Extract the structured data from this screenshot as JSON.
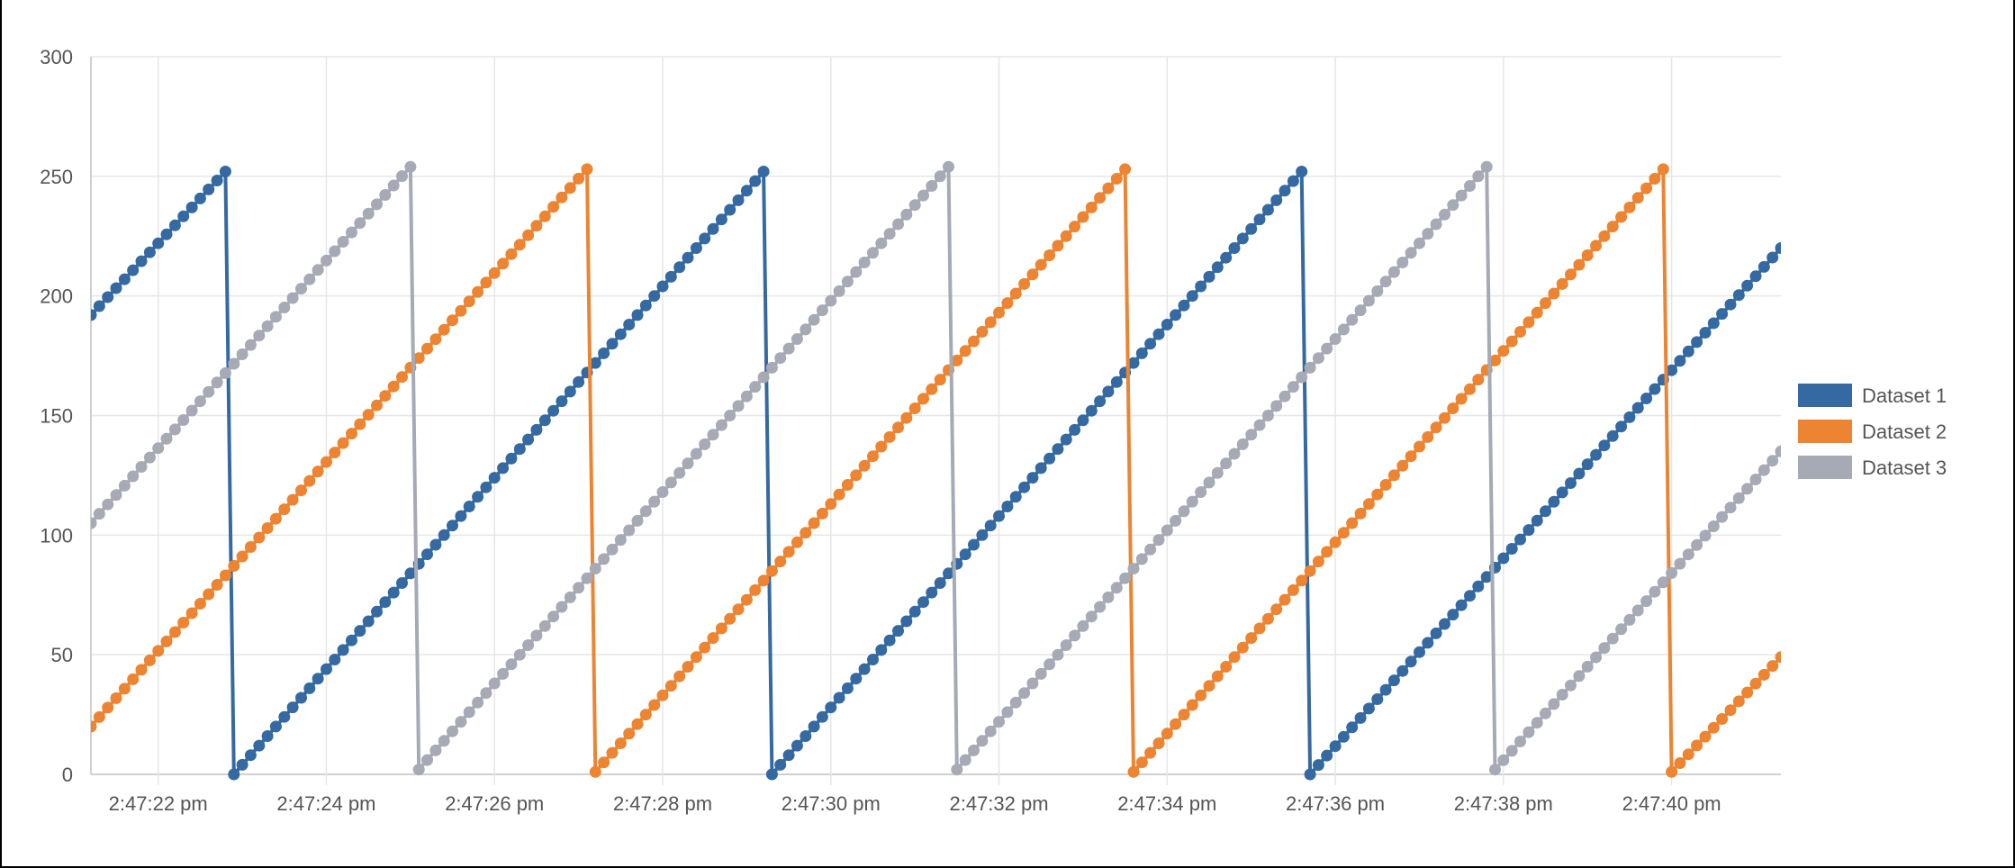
{
  "chart_data": {
    "type": "line",
    "title": "",
    "xlabel": "",
    "ylabel": "",
    "ylim": [
      0,
      300
    ],
    "yticks": [
      "0",
      "50",
      "100",
      "150",
      "200",
      "250",
      "300"
    ],
    "xlim": [
      "2:47:21.2 pm",
      "2:47:41.3 pm"
    ],
    "xticks": [
      "2:47:22 pm",
      "2:47:24 pm",
      "2:47:26 pm",
      "2:47:28 pm",
      "2:47:30 pm",
      "2:47:32 pm",
      "2:47:34 pm",
      "2:47:36 pm",
      "2:47:38 pm",
      "2:47:40 pm"
    ],
    "grid": true,
    "legend_position": "right",
    "sample_interval_s": 0.1,
    "series": [
      {
        "name": "Dataset 1",
        "color": "#3569a1",
        "segments": [
          {
            "start_time": "2:47:21.2 pm",
            "end_time": "2:47:22.8 pm",
            "start_value": 192,
            "end_value": 252
          },
          {
            "start_time": "2:47:22.9 pm",
            "end_time": "2:47:29.2 pm",
            "start_value": 0,
            "end_value": 252
          },
          {
            "start_time": "2:47:29.3 pm",
            "end_time": "2:47:35.6 pm",
            "start_value": 0,
            "end_value": 252
          },
          {
            "start_time": "2:47:35.7 pm",
            "end_time": "2:47:41.3 pm",
            "start_value": 0,
            "end_value": 220
          }
        ]
      },
      {
        "name": "Dataset 2",
        "color": "#ec8432",
        "segments": [
          {
            "start_time": "2:47:21.2 pm",
            "end_time": "2:47:27.1 pm",
            "start_value": 20,
            "end_value": 253
          },
          {
            "start_time": "2:47:27.2 pm",
            "end_time": "2:47:33.5 pm",
            "start_value": 1,
            "end_value": 253
          },
          {
            "start_time": "2:47:33.6 pm",
            "end_time": "2:47:39.9 pm",
            "start_value": 1,
            "end_value": 253
          },
          {
            "start_time": "2:47:40.0 pm",
            "end_time": "2:47:41.3 pm",
            "start_value": 1,
            "end_value": 49
          }
        ]
      },
      {
        "name": "Dataset 3",
        "color": "#a6aab5",
        "segments": [
          {
            "start_time": "2:47:21.2 pm",
            "end_time": "2:47:25.0 pm",
            "start_value": 105,
            "end_value": 254
          },
          {
            "start_time": "2:47:25.1 pm",
            "end_time": "2:47:31.4 pm",
            "start_value": 2,
            "end_value": 254
          },
          {
            "start_time": "2:47:31.5 pm",
            "end_time": "2:47:37.8 pm",
            "start_value": 2,
            "end_value": 254
          },
          {
            "start_time": "2:47:37.9 pm",
            "end_time": "2:47:41.3 pm",
            "start_value": 2,
            "end_value": 135
          }
        ]
      }
    ]
  }
}
